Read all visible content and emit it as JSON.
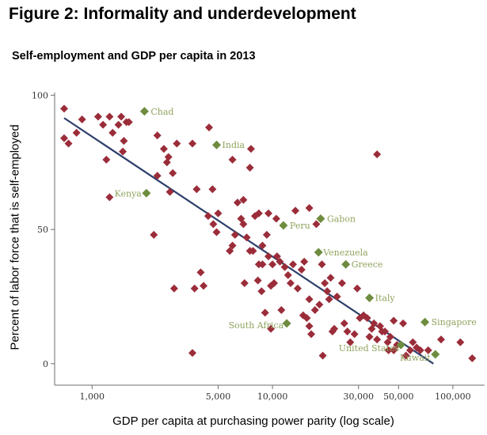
{
  "figure_title": "Figure 2: Informality and underdevelopment",
  "subtitle": "Self-employment and GDP per capita in 2013",
  "chart_data": {
    "type": "scatter",
    "title": "Self-employment and GDP per capita in 2013",
    "xlabel": "GDP per capita at purchasing power parity (log scale)",
    "ylabel": "Percent of labor force that is self-employed",
    "x_scale": "log",
    "xlim": [
      620,
      150000
    ],
    "ylim": [
      -8,
      101
    ],
    "x_ticks": [
      1000,
      5000,
      10000,
      30000,
      50000,
      100000
    ],
    "x_tick_labels": [
      "1,000",
      "5,000",
      "10,000",
      "30,000",
      "50,000",
      "100,000"
    ],
    "y_ticks": [
      0,
      50,
      100
    ],
    "y_tick_labels": [
      "0",
      "50",
      "100"
    ],
    "grid": false,
    "legend": "none",
    "colors": {
      "countries": "#9b2d3a",
      "highlighted": "#6e8c3f",
      "fit_line": "#2d3f6b",
      "highlight_label": "#8fa35e"
    },
    "fit_line": [
      [
        700,
        91.5
      ],
      [
        78000,
        0
      ]
    ],
    "highlighted": [
      {
        "label": "Chad",
        "x": 1950,
        "y": 94
      },
      {
        "label": "India",
        "x": 4900,
        "y": 81.5
      },
      {
        "label": "Kenya",
        "x": 2000,
        "y": 63.5
      },
      {
        "label": "Peru",
        "x": 11500,
        "y": 51.5
      },
      {
        "label": "Gabon",
        "x": 18500,
        "y": 54
      },
      {
        "label": "Venezuela",
        "x": 18000,
        "y": 41.5
      },
      {
        "label": "Greece",
        "x": 25500,
        "y": 37
      },
      {
        "label": "Italy",
        "x": 34500,
        "y": 24.5
      },
      {
        "label": "South Africa",
        "x": 12000,
        "y": 15
      },
      {
        "label": "United States",
        "x": 51500,
        "y": 7
      },
      {
        "label": "Kuwait",
        "x": 80000,
        "y": 3.5
      },
      {
        "label": "Singapore",
        "x": 70000,
        "y": 15.5
      }
    ],
    "countries": [
      [
        700,
        95
      ],
      [
        700,
        84
      ],
      [
        740,
        82
      ],
      [
        820,
        86
      ],
      [
        880,
        91
      ],
      [
        1080,
        92
      ],
      [
        1150,
        89
      ],
      [
        1200,
        76
      ],
      [
        1250,
        92
      ],
      [
        1300,
        86
      ],
      [
        1400,
        89
      ],
      [
        1450,
        92
      ],
      [
        1500,
        83
      ],
      [
        1480,
        79
      ],
      [
        1550,
        90
      ],
      [
        1600,
        90
      ],
      [
        1250,
        62
      ],
      [
        2300,
        85
      ],
      [
        2500,
        80
      ],
      [
        2650,
        77
      ],
      [
        2600,
        75
      ],
      [
        2950,
        82
      ],
      [
        3600,
        82
      ],
      [
        3800,
        65
      ],
      [
        4450,
        88
      ],
      [
        2800,
        71
      ],
      [
        2300,
        70
      ],
      [
        2700,
        64
      ],
      [
        2200,
        48
      ],
      [
        2850,
        28
      ],
      [
        3700,
        28
      ],
      [
        3600,
        4
      ],
      [
        4000,
        34
      ],
      [
        4150,
        29
      ],
      [
        4650,
        65
      ],
      [
        4400,
        55
      ],
      [
        4700,
        52
      ],
      [
        4900,
        49
      ],
      [
        5000,
        56
      ],
      [
        5800,
        42
      ],
      [
        6000,
        44
      ],
      [
        6200,
        48
      ],
      [
        6400,
        60
      ],
      [
        6000,
        76
      ],
      [
        6700,
        54
      ],
      [
        6900,
        61
      ],
      [
        7600,
        80
      ],
      [
        7500,
        73
      ],
      [
        7200,
        47
      ],
      [
        7000,
        30
      ],
      [
        6900,
        52
      ],
      [
        7500,
        42
      ],
      [
        7800,
        42
      ],
      [
        8000,
        55
      ],
      [
        8400,
        56
      ],
      [
        8300,
        31
      ],
      [
        8400,
        37
      ],
      [
        8800,
        37
      ],
      [
        8700,
        27
      ],
      [
        8800,
        44
      ],
      [
        9300,
        48
      ],
      [
        9500,
        40
      ],
      [
        9500,
        56
      ],
      [
        10000,
        37
      ],
      [
        10200,
        30
      ],
      [
        9800,
        29
      ],
      [
        10600,
        40
      ],
      [
        11000,
        38
      ],
      [
        10500,
        54
      ],
      [
        11200,
        20
      ],
      [
        9100,
        19
      ],
      [
        9800,
        13
      ],
      [
        11700,
        36
      ],
      [
        12200,
        33
      ],
      [
        12600,
        30
      ],
      [
        13400,
        57
      ],
      [
        13000,
        37
      ],
      [
        13800,
        28
      ],
      [
        14500,
        35
      ],
      [
        15000,
        38
      ],
      [
        14800,
        18
      ],
      [
        15500,
        17
      ],
      [
        16400,
        11
      ],
      [
        16000,
        14
      ],
      [
        16000,
        58
      ],
      [
        17500,
        52
      ],
      [
        16000,
        24
      ],
      [
        17200,
        20
      ],
      [
        18200,
        22
      ],
      [
        19500,
        30
      ],
      [
        18800,
        37
      ],
      [
        20100,
        27
      ],
      [
        20600,
        24
      ],
      [
        21500,
        12
      ],
      [
        21000,
        32
      ],
      [
        22800,
        25
      ],
      [
        24300,
        30
      ],
      [
        22000,
        13
      ],
      [
        25000,
        15
      ],
      [
        26000,
        12
      ],
      [
        27000,
        8
      ],
      [
        28500,
        11
      ],
      [
        30500,
        17
      ],
      [
        29500,
        28
      ],
      [
        32000,
        18
      ],
      [
        33500,
        17
      ],
      [
        34500,
        10
      ],
      [
        35500,
        13
      ],
      [
        36500,
        15
      ],
      [
        38000,
        9
      ],
      [
        38000,
        78
      ],
      [
        39500,
        14
      ],
      [
        40500,
        12
      ],
      [
        42000,
        12
      ],
      [
        43500,
        8
      ],
      [
        45000,
        10
      ],
      [
        47000,
        16
      ],
      [
        49000,
        7
      ],
      [
        53000,
        15
      ],
      [
        55000,
        3
      ],
      [
        58000,
        5
      ],
      [
        60000,
        8
      ],
      [
        63000,
        6
      ],
      [
        66000,
        5
      ],
      [
        73000,
        5
      ],
      [
        86000,
        9
      ],
      [
        110000,
        8
      ],
      [
        128000,
        2
      ],
      [
        47000,
        5
      ],
      [
        44000,
        5
      ],
      [
        19000,
        3
      ]
    ]
  }
}
